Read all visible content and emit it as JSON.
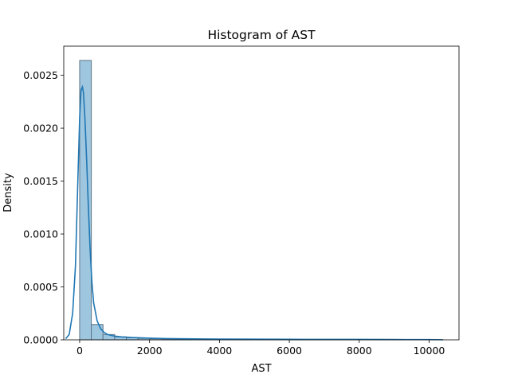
{
  "chart_data": {
    "type": "bar",
    "title": "Histogram of AST",
    "xlabel": "AST",
    "ylabel": "Density",
    "xlim": [
      -455,
      10855
    ],
    "ylim": [
      0,
      0.002775
    ],
    "grid": false,
    "legend": "none",
    "x_ticks": [
      0,
      2000,
      4000,
      6000,
      8000,
      10000
    ],
    "x_tick_labels": [
      "0",
      "2000",
      "4000",
      "6000",
      "8000",
      "10000"
    ],
    "y_ticks": [
      0,
      0.0005,
      0.001,
      0.0015,
      0.002,
      0.0025
    ],
    "y_tick_labels": [
      "0.0000",
      "0.0005",
      "0.0010",
      "0.0015",
      "0.0020",
      "0.0025"
    ],
    "histogram": {
      "bin_start": 0,
      "bin_width": 334,
      "densities": [
        0.00264,
        0.000145,
        5e-05,
        2.8e-05,
        2e-05,
        1.4e-05,
        1e-05,
        8e-06,
        6e-06,
        5e-06,
        4e-06,
        3e-06,
        3e-06,
        2.5e-06,
        2e-06,
        2e-06,
        1.5e-06,
        1.5e-06,
        1e-06,
        1e-06,
        1e-06,
        1e-06,
        8e-07,
        8e-07,
        6e-07,
        6e-07,
        5e-07,
        4e-07,
        4e-07,
        3e-07,
        3e-07
      ],
      "fill_color": "#9ec6df",
      "edge_color": "#5f7586"
    },
    "kde": {
      "color": "#1f77b4",
      "x": [
        -400,
        -300,
        -200,
        -120,
        -60,
        0,
        40,
        80,
        110,
        150,
        200,
        250,
        300,
        350,
        400,
        500,
        600,
        700,
        800,
        1000,
        1200,
        1500,
        2000,
        2500,
        3000,
        4000,
        5000,
        6000,
        7000,
        8000,
        9000,
        10000,
        10400
      ],
      "y": [
        1e-05,
        5e-05,
        0.00025,
        0.0007,
        0.0014,
        0.0021,
        0.00236,
        0.00239,
        0.00233,
        0.0021,
        0.0017,
        0.00125,
        0.00085,
        0.00055,
        0.00035,
        0.00018,
        0.000105,
        7e-05,
        5e-05,
        3.5e-05,
        2.8e-05,
        2.2e-05,
        1.6e-05,
        1.2e-05,
        1e-05,
        7e-06,
        6e-06,
        5e-06,
        4e-06,
        4e-06,
        3e-06,
        2e-06,
        1e-06
      ]
    }
  }
}
